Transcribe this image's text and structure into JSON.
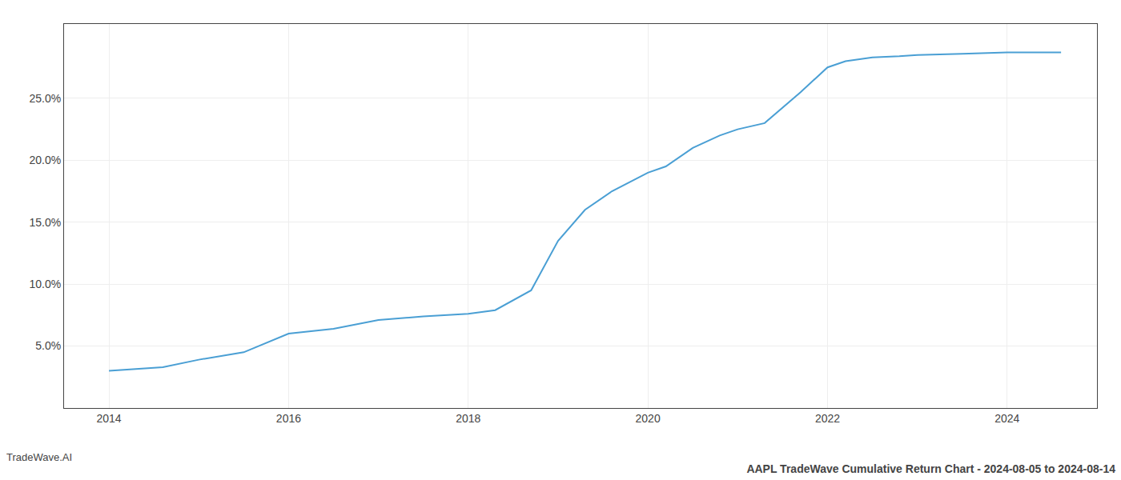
{
  "chart_data": {
    "type": "line",
    "title": "AAPL TradeWave Cumulative Return Chart - 2024-08-05 to 2024-08-14",
    "annotations": [
      {
        "text": "TradeWave.AI"
      }
    ],
    "x": [
      2014.0,
      2014.6,
      2015.0,
      2015.5,
      2016.0,
      2016.5,
      2017.0,
      2017.5,
      2018.0,
      2018.3,
      2018.7,
      2019.0,
      2019.3,
      2019.6,
      2020.0,
      2020.2,
      2020.5,
      2020.8,
      2021.0,
      2021.3,
      2021.7,
      2022.0,
      2022.2,
      2022.5,
      2022.8,
      2023.0,
      2023.5,
      2024.0,
      2024.6
    ],
    "values": [
      3.0,
      3.3,
      3.9,
      4.5,
      6.0,
      6.4,
      7.1,
      7.4,
      7.6,
      7.9,
      9.5,
      13.5,
      16.0,
      17.5,
      19.0,
      19.5,
      21.0,
      22.0,
      22.5,
      23.0,
      25.5,
      27.5,
      28.0,
      28.3,
      28.4,
      28.5,
      28.6,
      28.7,
      28.7
    ],
    "color": "#4a9fd4",
    "xlim": [
      2013.5,
      2025.0
    ],
    "xticks": [
      2014,
      2016,
      2018,
      2020,
      2022,
      2024
    ],
    "ylim": [
      0,
      31
    ],
    "yticks": [
      {
        "value": 5.0,
        "label": "5.0%"
      },
      {
        "value": 10.0,
        "label": "10.0%"
      },
      {
        "value": 15.0,
        "label": "15.0%"
      },
      {
        "value": 20.0,
        "label": "20.0%"
      },
      {
        "value": 25.0,
        "label": "25.0%"
      }
    ],
    "grid": true
  }
}
